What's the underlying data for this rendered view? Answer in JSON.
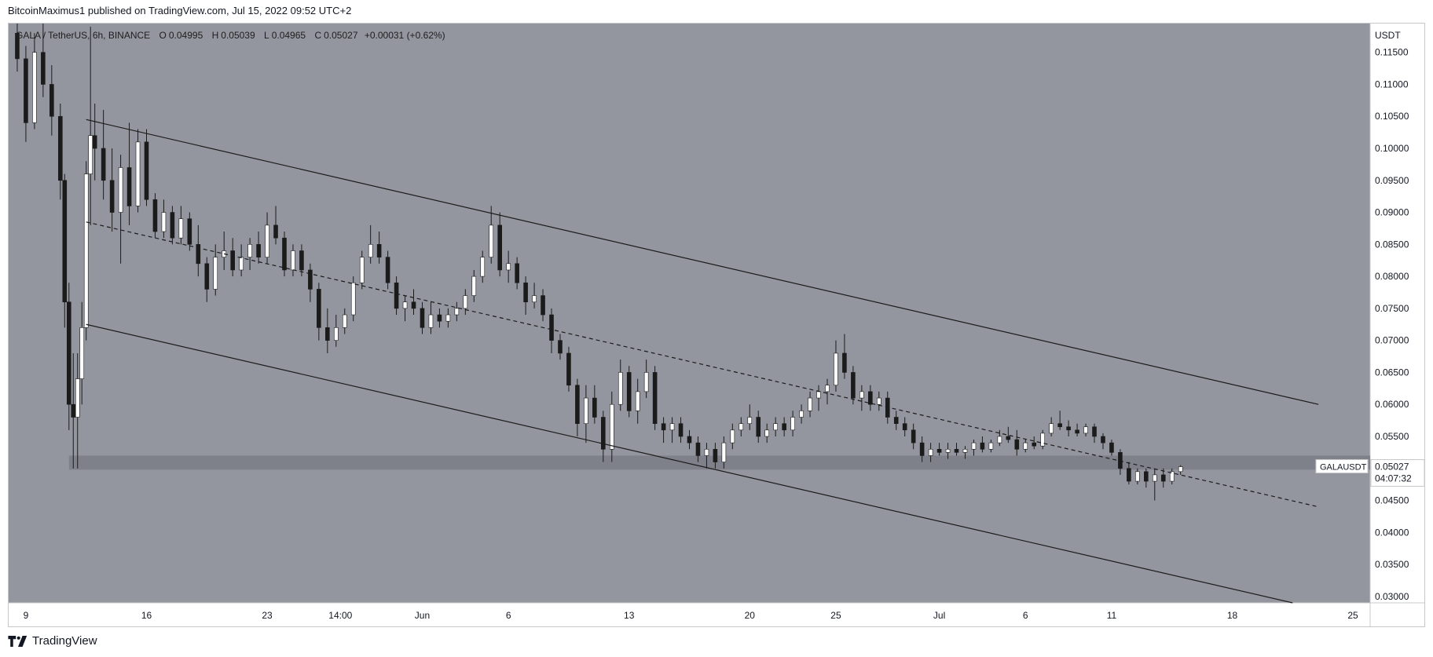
{
  "header": {
    "published_text": "BitcoinMaximus1 published on TradingView.com, Jul 15, 2022 09:52 UTC+2"
  },
  "symbol_info": {
    "pair": "GALA / TetherUS, 6h, BINANCE",
    "open_label": "O",
    "open": "0.04995",
    "high_label": "H",
    "high": "0.05039",
    "low_label": "L",
    "low": "0.04965",
    "close_label": "C",
    "close": "0.05027",
    "change": "+0.00031 (+0.62%)"
  },
  "price_axis": {
    "currency": "USDT",
    "ticks": [
      "0.11500",
      "0.11000",
      "0.10500",
      "0.10000",
      "0.09500",
      "0.09000",
      "0.08500",
      "0.08000",
      "0.07500",
      "0.07000",
      "0.06500",
      "0.06000",
      "0.05500",
      "0.05000",
      "0.04500",
      "0.04000",
      "0.03500",
      "0.03000"
    ]
  },
  "price_tag": {
    "symbol": "GALAUSDT",
    "price": "0.05027",
    "countdown": "04:07:32"
  },
  "time_axis": {
    "labels": [
      "9",
      "16",
      "23",
      "14:00",
      "Jun",
      "6",
      "13",
      "20",
      "25",
      "Jul",
      "6",
      "11",
      "18",
      "25"
    ]
  },
  "footer": {
    "brand": "TradingView"
  },
  "colors": {
    "plot_bg": "#93969e",
    "candle_up": "#ffffff",
    "candle_down": "#1b1b1b",
    "lines": "#1b1b1b",
    "zone": "#7b7e86"
  },
  "chart_data": {
    "type": "candlestick",
    "title": "GALA / TetherUS, 6h, BINANCE",
    "y_unit": "USDT",
    "ylim": [
      0.029,
      0.1195
    ],
    "x_range": [
      "2022-05-08",
      "2022-07-26"
    ],
    "x_ticks": [
      "9",
      "16",
      "23",
      "14:00",
      "Jun",
      "6",
      "13",
      "20",
      "25",
      "Jul",
      "6",
      "11",
      "18",
      "25"
    ],
    "candles": [
      [
        "2022-05-08T12",
        0.118,
        0.1195,
        0.112,
        0.114
      ],
      [
        "2022-05-09T00",
        0.114,
        0.116,
        0.101,
        0.104
      ],
      [
        "2022-05-09T12",
        0.104,
        0.118,
        0.103,
        0.115
      ],
      [
        "2022-05-10T00",
        0.115,
        0.1195,
        0.108,
        0.11
      ],
      [
        "2022-05-10T12",
        0.11,
        0.113,
        0.102,
        0.105
      ],
      [
        "2022-05-11T00",
        0.105,
        0.107,
        0.092,
        0.095
      ],
      [
        "2022-05-11T06",
        0.095,
        0.096,
        0.072,
        0.076
      ],
      [
        "2022-05-11T12",
        0.076,
        0.079,
        0.056,
        0.06
      ],
      [
        "2022-05-11T18",
        0.06,
        0.068,
        0.05,
        0.058
      ],
      [
        "2022-05-12T00",
        0.058,
        0.068,
        0.05,
        0.064
      ],
      [
        "2022-05-12T06",
        0.064,
        0.076,
        0.06,
        0.072
      ],
      [
        "2022-05-12T12",
        0.072,
        0.098,
        0.07,
        0.096
      ],
      [
        "2022-05-12T18",
        0.096,
        0.119,
        0.088,
        0.102
      ],
      [
        "2022-05-13T00",
        0.102,
        0.107,
        0.095,
        0.1
      ],
      [
        "2022-05-13T12",
        0.1,
        0.106,
        0.092,
        0.095
      ],
      [
        "2022-05-14T00",
        0.095,
        0.1,
        0.087,
        0.09
      ],
      [
        "2022-05-14T12",
        0.09,
        0.099,
        0.082,
        0.097
      ],
      [
        "2022-05-15T00",
        0.097,
        0.104,
        0.088,
        0.091
      ],
      [
        "2022-05-15T12",
        0.091,
        0.103,
        0.09,
        0.101
      ],
      [
        "2022-05-16T00",
        0.101,
        0.103,
        0.091,
        0.092
      ],
      [
        "2022-05-16T12",
        0.092,
        0.093,
        0.086,
        0.087
      ],
      [
        "2022-05-17T00",
        0.087,
        0.092,
        0.086,
        0.09
      ],
      [
        "2022-05-17T12",
        0.09,
        0.091,
        0.085,
        0.086
      ],
      [
        "2022-05-18T00",
        0.086,
        0.091,
        0.085,
        0.089
      ],
      [
        "2022-05-18T12",
        0.089,
        0.09,
        0.084,
        0.085
      ],
      [
        "2022-05-19T00",
        0.085,
        0.088,
        0.08,
        0.082
      ],
      [
        "2022-05-19T12",
        0.082,
        0.083,
        0.076,
        0.078
      ],
      [
        "2022-05-20T00",
        0.078,
        0.085,
        0.077,
        0.083
      ],
      [
        "2022-05-20T12",
        0.083,
        0.087,
        0.081,
        0.084
      ],
      [
        "2022-05-21T00",
        0.084,
        0.086,
        0.08,
        0.081
      ],
      [
        "2022-05-21T12",
        0.081,
        0.085,
        0.08,
        0.083
      ],
      [
        "2022-05-22T00",
        0.083,
        0.086,
        0.081,
        0.085
      ],
      [
        "2022-05-22T12",
        0.085,
        0.087,
        0.082,
        0.083
      ],
      [
        "2022-05-23T00",
        0.083,
        0.09,
        0.082,
        0.088
      ],
      [
        "2022-05-23T12",
        0.088,
        0.091,
        0.085,
        0.086
      ],
      [
        "2022-05-24T00",
        0.086,
        0.087,
        0.08,
        0.081
      ],
      [
        "2022-05-24T12",
        0.081,
        0.085,
        0.08,
        0.084
      ],
      [
        "2022-05-25T00",
        0.084,
        0.085,
        0.08,
        0.081
      ],
      [
        "2022-05-25T12",
        0.081,
        0.082,
        0.076,
        0.078
      ],
      [
        "2022-05-26T00",
        0.078,
        0.079,
        0.07,
        0.072
      ],
      [
        "2022-05-26T12",
        0.072,
        0.075,
        0.068,
        0.07
      ],
      [
        "2022-05-27T00",
        0.07,
        0.074,
        0.069,
        0.072
      ],
      [
        "2022-05-27T12",
        0.072,
        0.075,
        0.071,
        0.074
      ],
      [
        "2022-05-28T00",
        0.074,
        0.08,
        0.073,
        0.079
      ],
      [
        "2022-05-28T12",
        0.079,
        0.084,
        0.078,
        0.083
      ],
      [
        "2022-05-29T00",
        0.083,
        0.088,
        0.082,
        0.085
      ],
      [
        "2022-05-29T12",
        0.085,
        0.087,
        0.082,
        0.083
      ],
      [
        "2022-05-30T00",
        0.083,
        0.084,
        0.078,
        0.079
      ],
      [
        "2022-05-30T12",
        0.079,
        0.08,
        0.074,
        0.075
      ],
      [
        "2022-05-31T00",
        0.075,
        0.077,
        0.073,
        0.076
      ],
      [
        "2022-05-31T12",
        0.076,
        0.078,
        0.074,
        0.075
      ],
      [
        "2022-06-01T00",
        0.075,
        0.076,
        0.071,
        0.072
      ],
      [
        "2022-06-01T12",
        0.072,
        0.076,
        0.071,
        0.074
      ],
      [
        "2022-06-02T00",
        0.074,
        0.075,
        0.072,
        0.073
      ],
      [
        "2022-06-02T12",
        0.073,
        0.075,
        0.072,
        0.074
      ],
      [
        "2022-06-03T00",
        0.074,
        0.076,
        0.073,
        0.075
      ],
      [
        "2022-06-03T12",
        0.075,
        0.078,
        0.074,
        0.077
      ],
      [
        "2022-06-04T00",
        0.077,
        0.081,
        0.076,
        0.08
      ],
      [
        "2022-06-04T12",
        0.08,
        0.084,
        0.079,
        0.083
      ],
      [
        "2022-06-05T00",
        0.083,
        0.091,
        0.082,
        0.088
      ],
      [
        "2022-06-05T12",
        0.088,
        0.09,
        0.08,
        0.081
      ],
      [
        "2022-06-06T00",
        0.081,
        0.084,
        0.079,
        0.082
      ],
      [
        "2022-06-06T12",
        0.082,
        0.083,
        0.078,
        0.079
      ],
      [
        "2022-06-07T00",
        0.079,
        0.08,
        0.074,
        0.076
      ],
      [
        "2022-06-07T12",
        0.076,
        0.079,
        0.075,
        0.077
      ],
      [
        "2022-06-08T00",
        0.077,
        0.078,
        0.073,
        0.074
      ],
      [
        "2022-06-08T12",
        0.074,
        0.075,
        0.068,
        0.07
      ],
      [
        "2022-06-09T00",
        0.07,
        0.071,
        0.067,
        0.068
      ],
      [
        "2022-06-09T12",
        0.068,
        0.069,
        0.062,
        0.063
      ],
      [
        "2022-06-10T00",
        0.063,
        0.064,
        0.055,
        0.057
      ],
      [
        "2022-06-10T12",
        0.057,
        0.063,
        0.054,
        0.061
      ],
      [
        "2022-06-11T00",
        0.061,
        0.063,
        0.057,
        0.058
      ],
      [
        "2022-06-11T12",
        0.058,
        0.059,
        0.051,
        0.053
      ],
      [
        "2022-06-12T00",
        0.053,
        0.062,
        0.051,
        0.06
      ],
      [
        "2022-06-12T12",
        0.06,
        0.067,
        0.059,
        0.065
      ],
      [
        "2022-06-13T00",
        0.065,
        0.066,
        0.058,
        0.059
      ],
      [
        "2022-06-13T12",
        0.059,
        0.064,
        0.057,
        0.062
      ],
      [
        "2022-06-14T00",
        0.062,
        0.067,
        0.061,
        0.065
      ],
      [
        "2022-06-14T12",
        0.065,
        0.066,
        0.056,
        0.057
      ],
      [
        "2022-06-15T00",
        0.057,
        0.058,
        0.054,
        0.056
      ],
      [
        "2022-06-15T12",
        0.056,
        0.058,
        0.054,
        0.057
      ],
      [
        "2022-06-16T00",
        0.057,
        0.058,
        0.054,
        0.055
      ],
      [
        "2022-06-16T12",
        0.055,
        0.056,
        0.053,
        0.054
      ],
      [
        "2022-06-17T00",
        0.054,
        0.055,
        0.051,
        0.052
      ],
      [
        "2022-06-17T12",
        0.052,
        0.054,
        0.05,
        0.053
      ],
      [
        "2022-06-18T00",
        0.053,
        0.054,
        0.05,
        0.051
      ],
      [
        "2022-06-18T12",
        0.051,
        0.055,
        0.05,
        0.054
      ],
      [
        "2022-06-19T00",
        0.054,
        0.057,
        0.053,
        0.056
      ],
      [
        "2022-06-19T12",
        0.056,
        0.058,
        0.055,
        0.057
      ],
      [
        "2022-06-20T00",
        0.057,
        0.06,
        0.056,
        0.058
      ],
      [
        "2022-06-20T12",
        0.058,
        0.059,
        0.054,
        0.055
      ],
      [
        "2022-06-21T00",
        0.055,
        0.057,
        0.054,
        0.056
      ],
      [
        "2022-06-21T12",
        0.056,
        0.058,
        0.055,
        0.057
      ],
      [
        "2022-06-22T00",
        0.057,
        0.058,
        0.055,
        0.056
      ],
      [
        "2022-06-22T12",
        0.056,
        0.059,
        0.055,
        0.058
      ],
      [
        "2022-06-23T00",
        0.058,
        0.06,
        0.057,
        0.059
      ],
      [
        "2022-06-23T12",
        0.059,
        0.062,
        0.058,
        0.061
      ],
      [
        "2022-06-24T00",
        0.061,
        0.063,
        0.059,
        0.062
      ],
      [
        "2022-06-24T12",
        0.062,
        0.064,
        0.06,
        0.063
      ],
      [
        "2022-06-25T00",
        0.063,
        0.07,
        0.062,
        0.068
      ],
      [
        "2022-06-25T12",
        0.068,
        0.071,
        0.064,
        0.065
      ],
      [
        "2022-06-26T00",
        0.065,
        0.066,
        0.06,
        0.061
      ],
      [
        "2022-06-26T12",
        0.061,
        0.063,
        0.059,
        0.062
      ],
      [
        "2022-06-27T00",
        0.062,
        0.063,
        0.059,
        0.06
      ],
      [
        "2022-06-27T12",
        0.06,
        0.062,
        0.059,
        0.061
      ],
      [
        "2022-06-28T00",
        0.061,
        0.062,
        0.057,
        0.058
      ],
      [
        "2022-06-28T12",
        0.058,
        0.059,
        0.056,
        0.057
      ],
      [
        "2022-06-29T00",
        0.057,
        0.058,
        0.055,
        0.056
      ],
      [
        "2022-06-29T12",
        0.056,
        0.057,
        0.053,
        0.054
      ],
      [
        "2022-06-30T00",
        0.054,
        0.055,
        0.051,
        0.052
      ],
      [
        "2022-06-30T12",
        0.052,
        0.054,
        0.051,
        0.053
      ],
      [
        "2022-07-01T00",
        0.053,
        0.054,
        0.052,
        0.0525
      ],
      [
        "2022-07-01T12",
        0.0525,
        0.054,
        0.0515,
        0.053
      ],
      [
        "2022-07-02T00",
        0.053,
        0.054,
        0.052,
        0.0525
      ],
      [
        "2022-07-02T12",
        0.0525,
        0.0535,
        0.0515,
        0.053
      ],
      [
        "2022-07-03T00",
        0.053,
        0.0545,
        0.052,
        0.054
      ],
      [
        "2022-07-03T12",
        0.054,
        0.055,
        0.0525,
        0.053
      ],
      [
        "2022-07-04T00",
        0.053,
        0.0545,
        0.0525,
        0.054
      ],
      [
        "2022-07-04T12",
        0.054,
        0.056,
        0.0535,
        0.055
      ],
      [
        "2022-07-05T00",
        0.055,
        0.0565,
        0.054,
        0.0545
      ],
      [
        "2022-07-05T12",
        0.0545,
        0.056,
        0.052,
        0.053
      ],
      [
        "2022-07-06T00",
        0.053,
        0.0545,
        0.0525,
        0.054
      ],
      [
        "2022-07-06T12",
        0.054,
        0.055,
        0.053,
        0.0535
      ],
      [
        "2022-07-07T00",
        0.0535,
        0.056,
        0.053,
        0.0555
      ],
      [
        "2022-07-07T12",
        0.0555,
        0.058,
        0.055,
        0.057
      ],
      [
        "2022-07-08T00",
        0.057,
        0.059,
        0.056,
        0.0565
      ],
      [
        "2022-07-08T12",
        0.0565,
        0.0575,
        0.055,
        0.056
      ],
      [
        "2022-07-09T00",
        0.056,
        0.057,
        0.055,
        0.0555
      ],
      [
        "2022-07-09T12",
        0.0555,
        0.057,
        0.055,
        0.0565
      ],
      [
        "2022-07-10T00",
        0.0565,
        0.057,
        0.054,
        0.055
      ],
      [
        "2022-07-10T12",
        0.055,
        0.0555,
        0.053,
        0.054
      ],
      [
        "2022-07-11T00",
        0.054,
        0.0545,
        0.052,
        0.0525
      ],
      [
        "2022-07-11T12",
        0.0525,
        0.053,
        0.049,
        0.05
      ],
      [
        "2022-07-12T00",
        0.05,
        0.051,
        0.0475,
        0.048
      ],
      [
        "2022-07-12T12",
        0.048,
        0.05,
        0.0475,
        0.0495
      ],
      [
        "2022-07-13T00",
        0.0495,
        0.05,
        0.047,
        0.048
      ],
      [
        "2022-07-13T12",
        0.048,
        0.05,
        0.045,
        0.049
      ],
      [
        "2022-07-14T00",
        0.049,
        0.05,
        0.047,
        0.048
      ],
      [
        "2022-07-14T12",
        0.048,
        0.05,
        0.0475,
        0.0495
      ],
      [
        "2022-07-15T00",
        0.0495,
        0.0505,
        0.049,
        0.05027
      ]
    ],
    "channel": {
      "upper": [
        [
          "2022-05-12T12",
          0.1045
        ],
        [
          "2022-07-23T00",
          0.06
        ]
      ],
      "middle": [
        [
          "2022-05-12T12",
          0.0885
        ],
        [
          "2022-07-23T00",
          0.044
        ]
      ],
      "lower": [
        [
          "2022-05-12T12",
          0.0725
        ],
        [
          "2022-07-21T12",
          0.029
        ]
      ]
    },
    "support_zone": {
      "from": "2022-05-11T12",
      "to": "2022-07-26T00",
      "low": 0.0498,
      "high": 0.052
    },
    "last_price": 0.05027
  }
}
